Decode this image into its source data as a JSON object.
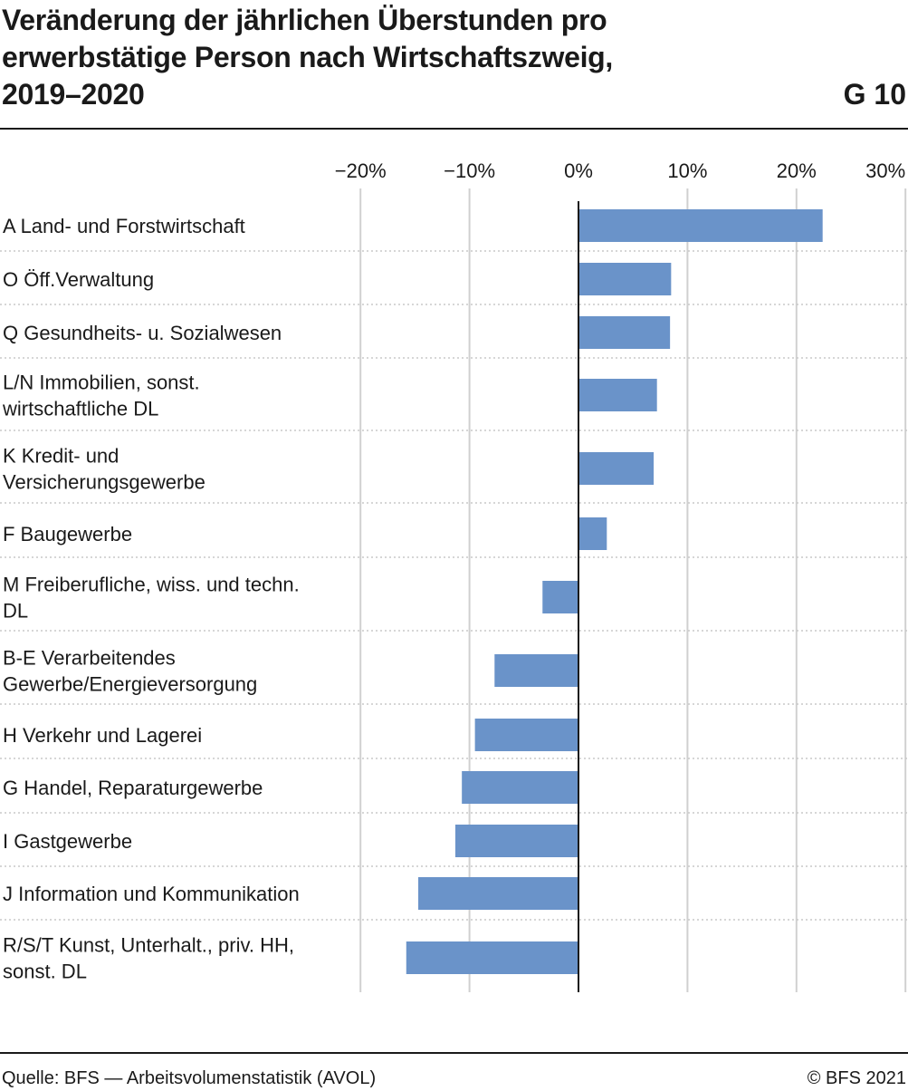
{
  "title_lines": [
    "Veränderung der jährlichen Überstunden pro",
    "erwerbstätige Person nach Wirtschaftszweig,",
    "2019–2020"
  ],
  "chart_number": "G 10",
  "source": "Quelle: BFS — Arbeitsvolumenstatistik (AVOL)",
  "copyright": "© BFS 2021",
  "colors": {
    "bar": "#6a93c9",
    "grid": "#d0d0d0",
    "zero_line": "#1a1a1a",
    "row_separator": "#c8c8c8"
  },
  "chart_data": {
    "type": "bar",
    "orientation": "horizontal",
    "xlim": [
      -20,
      30
    ],
    "ticks": [
      {
        "value": -20,
        "label": "−20%"
      },
      {
        "value": -10,
        "label": "−10%"
      },
      {
        "value": 0,
        "label": "0%"
      },
      {
        "value": 10,
        "label": "10%"
      },
      {
        "value": 20,
        "label": "20%"
      },
      {
        "value": 30,
        "label": "30%"
      }
    ],
    "grid": true,
    "categories": [
      [
        "A Land- und Forstwirtschaft"
      ],
      [
        "O Öff.Verwaltung"
      ],
      [
        "Q Gesundheits- u. Sozialwesen"
      ],
      [
        "L/N Immobilien, sonst.",
        "wirtschaftliche DL"
      ],
      [
        "K Kredit- und",
        "Versicherungsgewerbe"
      ],
      [
        "F Baugewerbe"
      ],
      [
        "M Freiberufliche, wiss. und techn.",
        "DL"
      ],
      [
        "B-E Verarbeitendes",
        "Gewerbe/Energieversorgung"
      ],
      [
        "H Verkehr und Lagerei"
      ],
      [
        "G Handel, Reparaturgewerbe"
      ],
      [
        "I Gastgewerbe"
      ],
      [
        "J Information und Kommunikation"
      ],
      [
        "R/S/T Kunst, Unterhalt., priv. HH,",
        "sonst. DL"
      ]
    ],
    "values": [
      22.4,
      8.5,
      8.4,
      7.2,
      6.9,
      2.6,
      -3.3,
      -7.7,
      -9.5,
      -10.7,
      -11.3,
      -14.7,
      -15.8
    ]
  }
}
